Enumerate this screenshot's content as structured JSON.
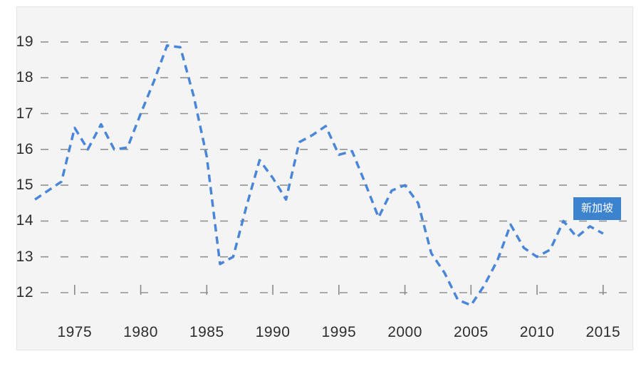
{
  "page": {
    "background": "#ffffff"
  },
  "panel": {
    "background": "#f4f4f5",
    "border_color": "#e4e4e4"
  },
  "series_label": {
    "text": "新加坡",
    "bg_color": "#3c83cf",
    "text_color": "#ffffff"
  },
  "axes": {
    "y_labels": [
      "19",
      "18",
      "17",
      "16",
      "15",
      "14",
      "13",
      "12"
    ],
    "x_labels": [
      "1975",
      "1980",
      "1985",
      "1990",
      "1995",
      "2000",
      "2005",
      "2010",
      "2015"
    ],
    "label_color": "#2e2e2e",
    "gridline_color": "#929292",
    "tick_color": "#8a8a8a"
  },
  "line": {
    "color": "#4a86d8",
    "style": "dashed",
    "width": 3.5
  },
  "chart_data": {
    "type": "line",
    "title": "",
    "xlabel": "",
    "ylabel": "",
    "grid": "horizontal dashed gridlines at integer values 12-19",
    "legend": "inline blue label box at right end of line",
    "ylim": [
      11.4,
      19.6
    ],
    "xlim": [
      1971.6,
      2016.8
    ],
    "y_ticks": [
      12,
      13,
      14,
      15,
      16,
      17,
      18,
      19
    ],
    "x_ticks": [
      1975,
      1980,
      1985,
      1990,
      1995,
      2000,
      2005,
      2010,
      2015
    ],
    "series": [
      {
        "name": "新加坡",
        "x": [
          1972,
          1973,
          1974,
          1975,
          1976,
          1977,
          1978,
          1979,
          1980,
          1981,
          1982,
          1983,
          1984,
          1985,
          1986,
          1987,
          1988,
          1989,
          1990,
          1991,
          1992,
          1993,
          1994,
          1995,
          1996,
          1997,
          1998,
          1999,
          2000,
          2001,
          2002,
          2003,
          2004,
          2005,
          2006,
          2007,
          2008,
          2009,
          2010,
          2011,
          2012,
          2013,
          2014,
          2015
        ],
        "values": [
          14.6,
          14.85,
          15.1,
          16.6,
          16.0,
          16.7,
          16.0,
          16.05,
          17.0,
          17.9,
          18.9,
          18.85,
          17.5,
          15.8,
          12.8,
          13.0,
          14.4,
          15.7,
          15.2,
          14.6,
          16.2,
          16.4,
          16.65,
          15.85,
          15.95,
          15.05,
          14.1,
          14.85,
          15.0,
          14.5,
          13.1,
          12.55,
          11.8,
          11.65,
          12.2,
          12.9,
          13.9,
          13.25,
          13.0,
          13.2,
          14.0,
          13.55,
          13.85,
          13.65
        ]
      }
    ]
  }
}
